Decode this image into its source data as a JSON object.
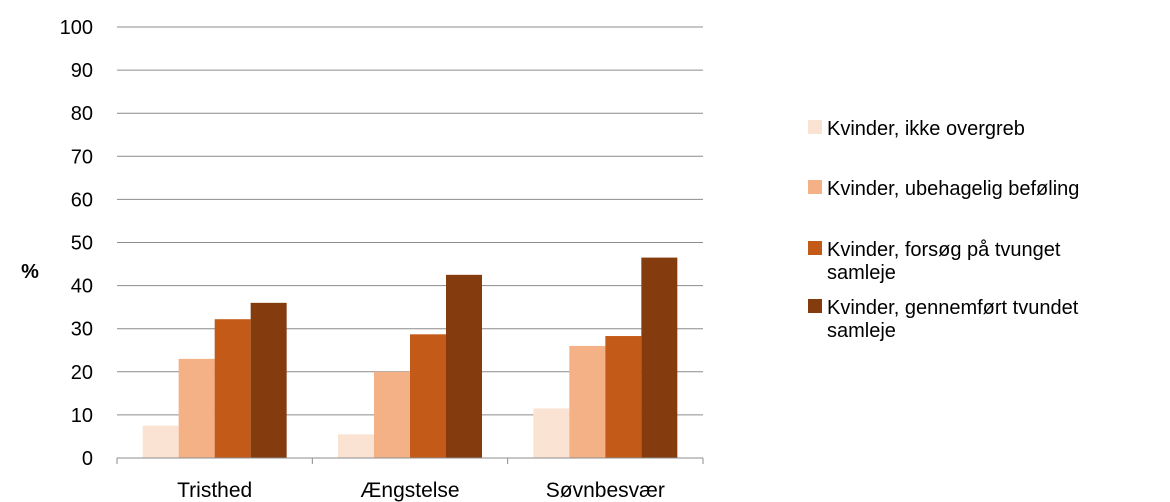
{
  "chart_data": {
    "type": "bar",
    "categories": [
      "Tristhed",
      "Ængstelse",
      "Søvnbesvær"
    ],
    "series": [
      {
        "name": "Kvinder, ikke overgreb",
        "values": [
          7.5,
          5.5,
          11.5
        ],
        "color": "#fbe3d4"
      },
      {
        "name": "Kvinder, ubehagelig beføling",
        "values": [
          23,
          20,
          26
        ],
        "color": "#f3b185"
      },
      {
        "name": "Kvinder, forsøg på tvunget samleje",
        "values": [
          32.2,
          28.7,
          28.3
        ],
        "color": "#c45a17"
      },
      {
        "name": "Kvinder, gennemført tvundet samleje",
        "values": [
          36,
          42.5,
          46.5
        ],
        "color": "#843c0f"
      }
    ],
    "legend_lines": [
      [
        "Kvinder, ikke overgreb"
      ],
      [
        "Kvinder, ubehagelig beføling"
      ],
      [
        "Kvinder, forsøg på tvunget",
        "samleje"
      ],
      [
        "Kvinder, gennemført tvundet",
        "samleje"
      ]
    ],
    "title": "",
    "xlabel": "",
    "ylabel": "%",
    "ylim": [
      0,
      100
    ],
    "yticks": [
      0,
      10,
      20,
      30,
      40,
      50,
      60,
      70,
      80,
      90,
      100
    ],
    "grid": true,
    "legend_position": "right"
  }
}
